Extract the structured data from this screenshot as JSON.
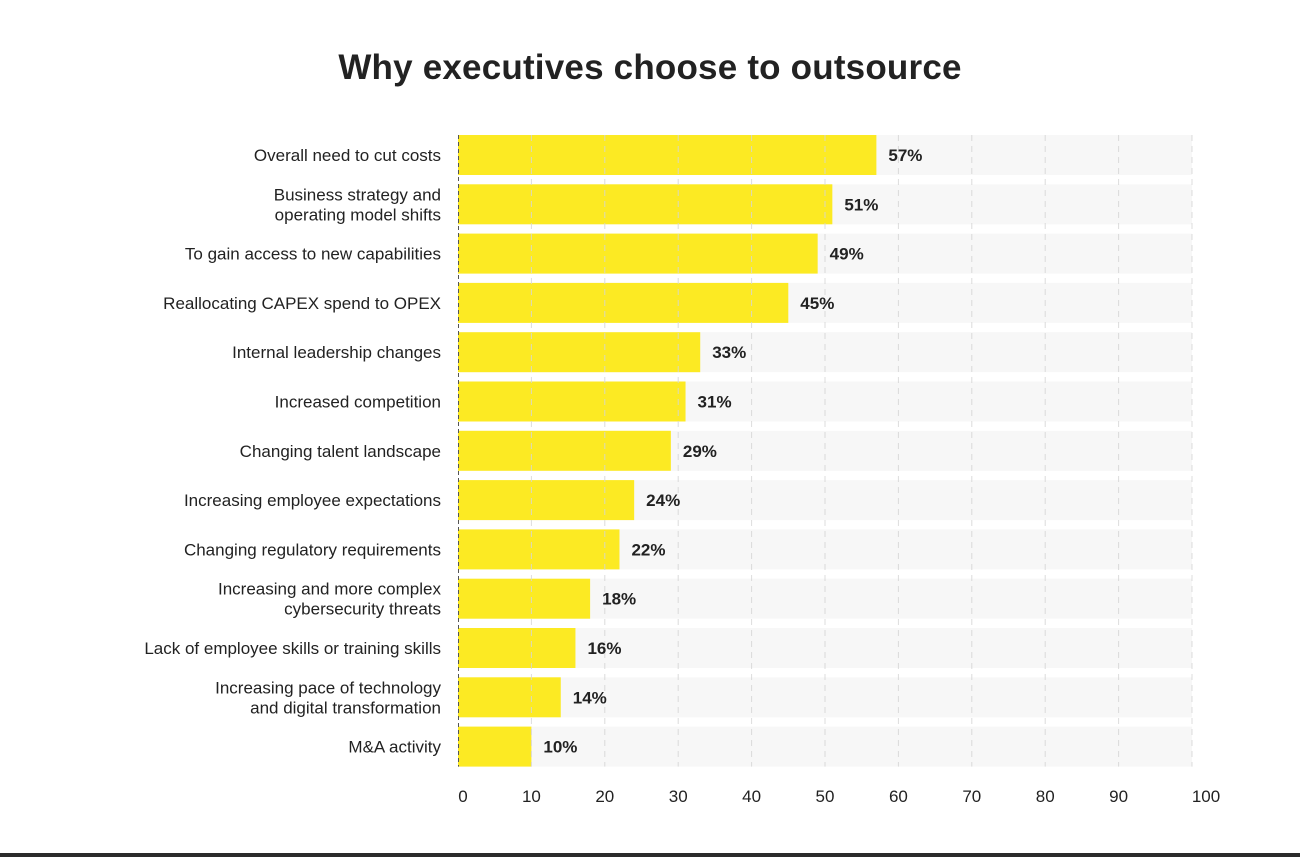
{
  "chart_data": {
    "type": "bar",
    "orientation": "horizontal",
    "title": "Why executives choose to outsource",
    "categories": [
      [
        "Overall need to cut costs"
      ],
      [
        "Business strategy and",
        "operating model shifts"
      ],
      [
        "To gain access to new capabilities"
      ],
      [
        "Reallocating CAPEX spend to OPEX"
      ],
      [
        "Internal leadership changes"
      ],
      [
        "Increased competition"
      ],
      [
        "Changing talent landscape"
      ],
      [
        "Increasing employee expectations"
      ],
      [
        "Changing regulatory requirements"
      ],
      [
        "Increasing and more complex",
        "cybersecurity threats"
      ],
      [
        "Lack of employee skills or training skills"
      ],
      [
        "Increasing pace of technology",
        "and digital transformation"
      ],
      [
        "M&A activity"
      ]
    ],
    "values": [
      57,
      51,
      49,
      45,
      33,
      31,
      29,
      24,
      22,
      18,
      16,
      14,
      10
    ],
    "value_labels": [
      "57%",
      "51%",
      "49%",
      "45%",
      "33%",
      "31%",
      "29%",
      "24%",
      "22%",
      "18%",
      "16%",
      "14%",
      "10%"
    ],
    "xlim": [
      0,
      100
    ],
    "xticks": [
      0,
      10,
      20,
      30,
      40,
      50,
      60,
      70,
      80,
      90,
      100
    ],
    "xlabel": "",
    "ylabel": "",
    "grid": "vertical dashed",
    "legend": "none",
    "colors": {
      "bar": "#FCEA23",
      "track": "#F7F7F7",
      "grid": "#D6D6D6",
      "text": "#222222",
      "bottom_rule": "#2B2B2B"
    }
  }
}
